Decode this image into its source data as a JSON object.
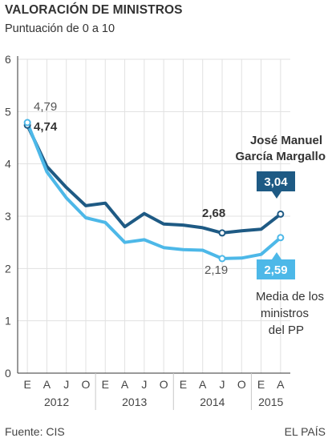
{
  "header": {
    "title": "VALORACIÓN DE MINISTROS",
    "subtitle": "Puntuación de 0 a 10"
  },
  "footer": {
    "source": "Fuente: CIS",
    "brand": "EL PAÍS"
  },
  "chart_data": {
    "type": "line",
    "ylim": [
      0,
      6
    ],
    "y_ticks": [
      "0",
      "1",
      "2",
      "3",
      "4",
      "5",
      "6"
    ],
    "x_ticks": [
      "E",
      "A",
      "J",
      "O",
      "E",
      "A",
      "J",
      "O",
      "E",
      "A",
      "J",
      "O",
      "E",
      "A"
    ],
    "year_labels": [
      "2012",
      "2013",
      "2014",
      "2015"
    ],
    "grid": true,
    "series": [
      {
        "name": "José Manuel García Margallo",
        "color": "#1e5a84",
        "x": [
          0,
          1,
          2,
          3,
          4,
          5,
          6,
          7,
          8,
          9,
          10,
          11,
          12,
          13
        ],
        "values": [
          4.74,
          3.95,
          3.55,
          3.2,
          3.25,
          2.8,
          3.05,
          2.85,
          2.83,
          2.78,
          2.68,
          2.72,
          2.75,
          3.04
        ]
      },
      {
        "name": "Media de los ministros del PP",
        "color": "#4db8e8",
        "x": [
          0,
          1,
          2,
          3,
          4,
          5,
          6,
          7,
          8,
          9,
          10,
          11,
          12,
          13
        ],
        "values": [
          4.79,
          3.85,
          3.35,
          2.97,
          2.88,
          2.5,
          2.55,
          2.4,
          2.36,
          2.35,
          2.19,
          2.2,
          2.27,
          2.59
        ]
      }
    ],
    "annotations": {
      "margallo_start": "4,74",
      "media_start": "4,79",
      "margallo_min": "2,68",
      "media_min": "2,19",
      "margallo_end": "3,04",
      "media_end": "2,59",
      "margallo_name_line1": "José Manuel",
      "margallo_name_line2": "García Margallo",
      "media_name_line1": "Media de los",
      "media_name_line2": "ministros",
      "media_name_line3": "del PP"
    }
  }
}
